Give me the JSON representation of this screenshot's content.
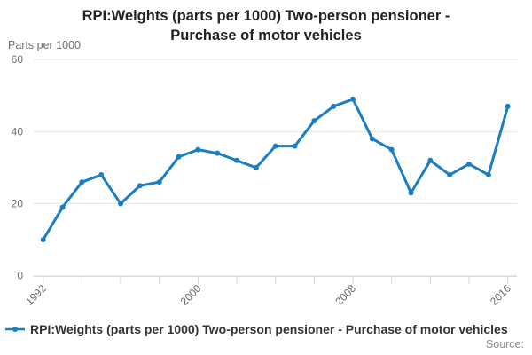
{
  "header": {
    "title_line1": "RPI:Weights (parts per 1000) Two-person pensioner -",
    "title_line2": "Purchase of motor vehicles"
  },
  "axes": {
    "y": {
      "title": "Parts per 1000",
      "tick_labels": [
        "60",
        "40",
        "20",
        "0"
      ]
    },
    "x": {
      "tick_labels": [
        "1992",
        "2000",
        "2008",
        "2016"
      ]
    }
  },
  "legend": {
    "label": "RPI:Weights (parts per 1000) Two-person pensioner - Purchase of motor vehicles"
  },
  "footer": {
    "source_label": "Source:"
  },
  "colors": {
    "series": "#1b7ec0",
    "grid": "#e6e6e6",
    "axis": "#c8d3e0",
    "tick_text": "#666666",
    "y_tick_text": "#6e6e6e"
  },
  "chart_data": {
    "type": "line",
    "title": "RPI:Weights (parts per 1000) Two-person pensioner - Purchase of motor vehicles",
    "xlabel": "",
    "ylabel": "Parts per 1000",
    "x": [
      1992,
      1993,
      1994,
      1995,
      1996,
      1997,
      1998,
      1999,
      2000,
      2001,
      2002,
      2003,
      2004,
      2005,
      2006,
      2007,
      2008,
      2009,
      2010,
      2011,
      2012,
      2013,
      2014,
      2015,
      2016
    ],
    "series": [
      {
        "name": "RPI:Weights (parts per 1000) Two-person pensioner - Purchase of motor vehicles",
        "values": [
          10,
          19,
          26,
          28,
          20,
          25,
          26,
          33,
          35,
          34,
          32,
          30,
          36,
          36,
          43,
          47,
          49,
          38,
          35,
          23,
          32,
          28,
          31,
          28,
          47
        ]
      }
    ],
    "ylim": [
      0,
      60
    ],
    "y_ticks": [
      0,
      20,
      40,
      60
    ],
    "x_major_ticks": [
      1992,
      1994,
      1996,
      1998,
      2000,
      2002,
      2004,
      2006,
      2008,
      2010,
      2012,
      2014,
      2016
    ],
    "x_labeled_ticks": [
      1992,
      2000,
      2008,
      2016
    ],
    "grid": true,
    "legend_position": "bottom-left",
    "marker": "circle"
  }
}
